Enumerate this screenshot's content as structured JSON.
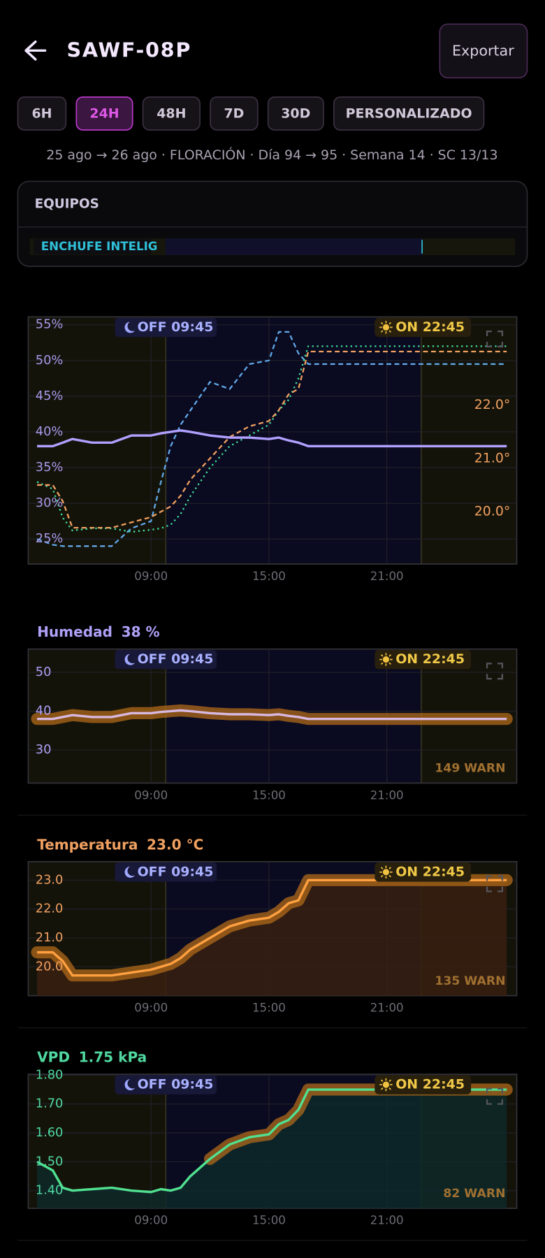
{
  "header": {
    "title": "SAWF-08P",
    "export": "Exportar"
  },
  "ranges": {
    "options": [
      "6H",
      "24H",
      "48H",
      "7D",
      "30D",
      "PERSONALIZADO"
    ],
    "active": 1
  },
  "info": "25 ago → 26 ago · FLORACIÓN · Día 94 → 95 · Semana 14 · SC 13/13",
  "equipment": {
    "title": "EQUIPOS",
    "items": [
      "ENCHUFE INTELIG"
    ]
  },
  "lights": {
    "off": {
      "value": 9.75,
      "label": "OFF 09:45"
    },
    "on": {
      "value": 22.75,
      "label": "ON 22:45"
    }
  },
  "chart_data": [
    {
      "type": "line",
      "x": [
        3.2,
        4,
        4.5,
        5,
        6,
        7,
        8,
        9,
        9.5,
        10,
        10.5,
        11,
        12,
        13,
        14,
        15,
        15.5,
        16,
        16.5,
        17,
        18,
        21,
        24,
        27.1
      ],
      "xlim": [
        2.75,
        27.61
      ],
      "xticks": [
        {
          "value": 9,
          "label": "09:00"
        },
        {
          "value": 15,
          "label": "15:00"
        },
        {
          "value": 21,
          "label": "21:00"
        }
      ],
      "ylim": [
        21.5,
        56.1
      ],
      "yticks": [
        {
          "value": 25,
          "label": "25%"
        },
        {
          "value": 30,
          "label": "30%"
        },
        {
          "value": 35,
          "label": "35%"
        },
        {
          "value": 40,
          "label": "40%"
        },
        {
          "value": 45,
          "label": "45%"
        },
        {
          "value": 50,
          "label": "50%"
        },
        {
          "value": 55,
          "label": "55%"
        }
      ],
      "y2lim": [
        19.02,
        23.65
      ],
      "y2ticks": [
        {
          "value": 20,
          "label": "20.0°"
        },
        {
          "value": 21,
          "label": "21.0°"
        },
        {
          "value": 22,
          "label": "22.0°"
        }
      ],
      "grid": true,
      "series": [
        {
          "color": "#60a8e8",
          "style": "dashed",
          "values": [
            25,
            24.2,
            24,
            24,
            24,
            24,
            26.5,
            27.5,
            33,
            38,
            41,
            43,
            47,
            46,
            49.5,
            50,
            54,
            54,
            51,
            49.5,
            49.5,
            49.5,
            49.5,
            49.5
          ]
        },
        {
          "color": "#40e0a0",
          "style": "dotted",
          "values": [
            33,
            32,
            28,
            26.2,
            26.5,
            26.5,
            26,
            26.3,
            26.5,
            27,
            28.5,
            31,
            35,
            38,
            39.5,
            41,
            43,
            44.5,
            47.5,
            52,
            52,
            52,
            52,
            52
          ]
        },
        {
          "color": "#f0a060",
          "style": "dashed",
          "axis": "y2",
          "values": [
            20.5,
            20.5,
            20.2,
            19.7,
            19.7,
            19.7,
            19.8,
            19.9,
            20.0,
            20.1,
            20.3,
            20.6,
            21.0,
            21.4,
            21.6,
            21.7,
            21.9,
            22.2,
            22.3,
            23.0,
            23.0,
            23.0,
            23.0,
            23.0
          ]
        },
        {
          "color": "#b0a0ff",
          "style": "solid",
          "values": [
            38,
            38,
            38.5,
            39,
            38.5,
            38.5,
            39.5,
            39.5,
            39.8,
            40,
            40.2,
            40,
            39.5,
            39.2,
            39.2,
            39,
            39.2,
            38.8,
            38.5,
            38,
            38,
            38,
            38,
            38
          ]
        }
      ]
    },
    {
      "type": "line",
      "title": "Humedad",
      "current": "38 %",
      "label_color": "#b0a0f8",
      "warn": "149 WARN",
      "x": [
        3.2,
        4,
        4.5,
        5,
        6,
        7,
        8,
        9,
        9.5,
        10,
        10.5,
        11,
        12,
        13,
        14,
        15,
        15.5,
        16,
        16.5,
        17,
        18,
        21,
        24,
        27.1
      ],
      "xlim": [
        2.75,
        27.61
      ],
      "xticks": [
        {
          "value": 9,
          "label": "09:00"
        },
        {
          "value": 15,
          "label": "15:00"
        },
        {
          "value": 21,
          "label": "21:00"
        }
      ],
      "ylim": [
        21.5,
        56
      ],
      "yticks": [
        30,
        40,
        50
      ],
      "grid": true,
      "series": [
        {
          "color": "#d8b8e0",
          "glow": "#b06a1a",
          "values": [
            38,
            38,
            38.5,
            39,
            38.5,
            38.5,
            39.5,
            39.5,
            39.8,
            40,
            40.2,
            40,
            39.5,
            39.2,
            39.2,
            39,
            39.2,
            38.8,
            38.5,
            38,
            38,
            38,
            38,
            38
          ]
        }
      ]
    },
    {
      "type": "line",
      "title": "Temperatura",
      "current": "23.0 °C",
      "label_color": "#f0a060",
      "warn": "135 WARN",
      "x": [
        3.2,
        4,
        4.5,
        5,
        6,
        7,
        8,
        9,
        9.5,
        10,
        10.5,
        11,
        12,
        13,
        14,
        15,
        15.5,
        16,
        16.5,
        17,
        18,
        21,
        24,
        27.1
      ],
      "xlim": [
        2.75,
        27.61
      ],
      "xticks": [
        {
          "value": 9,
          "label": "09:00"
        },
        {
          "value": 15,
          "label": "15:00"
        },
        {
          "value": 21,
          "label": "21:00"
        }
      ],
      "ylim": [
        19,
        23.64
      ],
      "yticks": [
        {
          "value": 20,
          "label": "20.0"
        },
        {
          "value": 21,
          "label": "21.0"
        },
        {
          "value": 22,
          "label": "22.0"
        },
        {
          "value": 23,
          "label": "23.0"
        }
      ],
      "grid": true,
      "series": [
        {
          "color": "#ffa040",
          "glow": "#b06a1a",
          "area": "#3a2010",
          "values": [
            20.5,
            20.5,
            20.2,
            19.7,
            19.7,
            19.7,
            19.8,
            19.9,
            20.0,
            20.1,
            20.3,
            20.6,
            21.0,
            21.4,
            21.6,
            21.7,
            21.9,
            22.2,
            22.3,
            23.0,
            23.0,
            23.0,
            23.0,
            23.0
          ]
        }
      ]
    },
    {
      "type": "line",
      "title": "VPD",
      "current": "1.75 kPa",
      "label_color": "#50d8a0",
      "warn": "82 WARN",
      "x": [
        3.2,
        4,
        4.5,
        5,
        6,
        7,
        8,
        9,
        9.5,
        10,
        10.5,
        11,
        12,
        13,
        14,
        15,
        15.5,
        16,
        16.5,
        17,
        18,
        21,
        24,
        27.1
      ],
      "xlim": [
        2.75,
        27.61
      ],
      "xticks": [
        {
          "value": 9,
          "label": "09:00"
        },
        {
          "value": 15,
          "label": "15:00"
        },
        {
          "value": 21,
          "label": "21:00"
        }
      ],
      "ylim": [
        1.339,
        1.803
      ],
      "yticks": [
        {
          "value": 1.4,
          "label": "1.40"
        },
        {
          "value": 1.5,
          "label": "1.50"
        },
        {
          "value": 1.6,
          "label": "1.60"
        },
        {
          "value": 1.7,
          "label": "1.70"
        },
        {
          "value": 1.8,
          "label": "1.80"
        }
      ],
      "grid": true,
      "series": [
        {
          "color": "#50e090",
          "glow": "#b06a1a",
          "area": "#0c2a2a",
          "glow_from": 12,
          "values": [
            1.5,
            1.47,
            1.41,
            1.4,
            1.405,
            1.41,
            1.4,
            1.395,
            1.405,
            1.4,
            1.41,
            1.45,
            1.51,
            1.56,
            1.585,
            1.595,
            1.63,
            1.645,
            1.68,
            1.75,
            1.75,
            1.75,
            1.75,
            1.75
          ]
        }
      ]
    }
  ]
}
